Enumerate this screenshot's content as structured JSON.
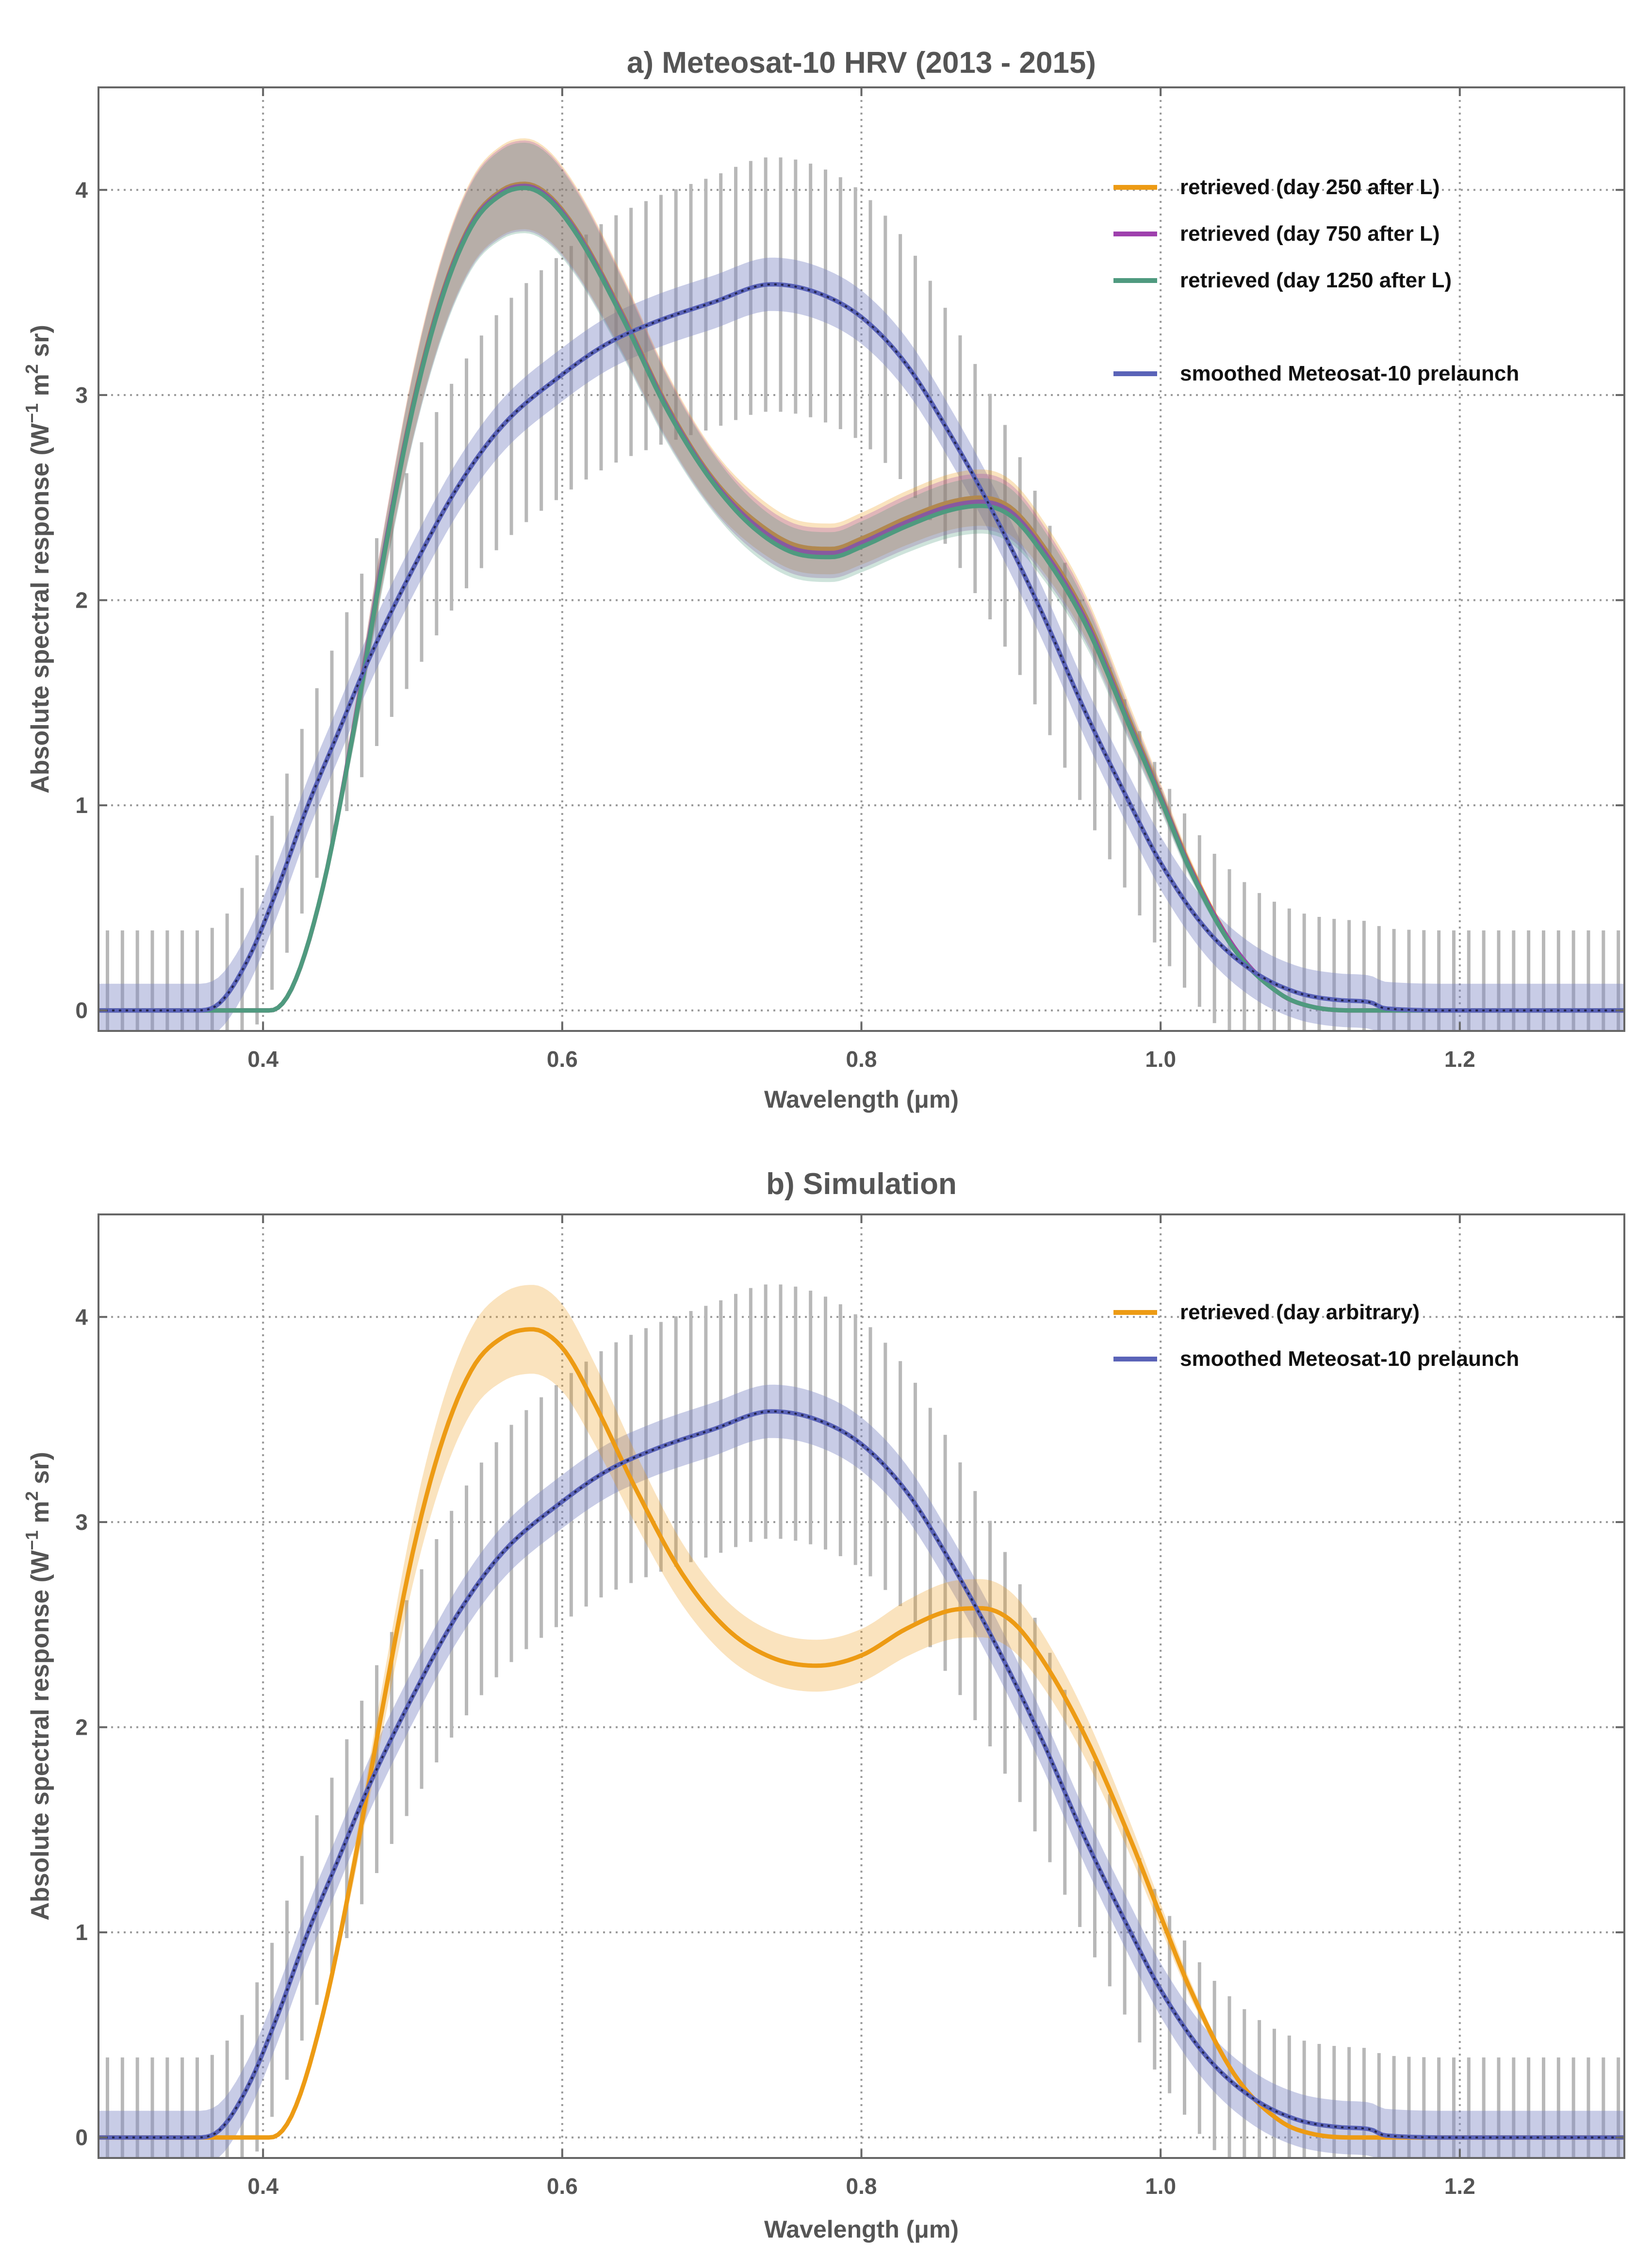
{
  "chart_data": [
    {
      "type": "line",
      "title": "a) Meteosat-10 HRV (2013 - 2015)",
      "xlabel": "Wavelength (μm)",
      "ylabel_main": "Absolute spectral response (W",
      "ylabel_exp1": "−1",
      "ylabel_mid": " m",
      "ylabel_exp2": "2",
      "ylabel_end": " sr)",
      "xlim": [
        0.29,
        1.31
      ],
      "ylim": [
        -0.1,
        4.5
      ],
      "xticks": [
        0.4,
        0.6,
        0.8,
        1.0,
        1.2
      ],
      "xtick_labels": [
        "0.4",
        "0.6",
        "0.8",
        "1.0",
        "1.2"
      ],
      "yticks": [
        0,
        1,
        2,
        3,
        4
      ],
      "ytick_labels": [
        "0",
        "1",
        "2",
        "3",
        "4"
      ],
      "grid": true,
      "legend_position": "top-right",
      "reference": {
        "name": "smoothed Meteosat-10 prelaunch",
        "color": "#5a63b8",
        "band_color": "#7c86c4",
        "band_halfwidth": 0.13,
        "errorbar_halfwidth": 0.39,
        "x": [
          0.29,
          0.33,
          0.355,
          0.37,
          0.39,
          0.41,
          0.43,
          0.45,
          0.47,
          0.5,
          0.53,
          0.56,
          0.6,
          0.63,
          0.66,
          0.7,
          0.74,
          0.77,
          0.8,
          0.83,
          0.86,
          0.89,
          0.92,
          0.95,
          0.98,
          1.0,
          1.03,
          1.06,
          1.09,
          1.12,
          1.14,
          1.15,
          1.2,
          1.31
        ],
        "y": [
          0.0,
          0.0,
          0.0,
          0.03,
          0.25,
          0.6,
          1.0,
          1.35,
          1.7,
          2.15,
          2.55,
          2.85,
          3.1,
          3.25,
          3.35,
          3.45,
          3.54,
          3.5,
          3.38,
          3.15,
          2.8,
          2.4,
          1.95,
          1.45,
          1.0,
          0.72,
          0.4,
          0.2,
          0.09,
          0.05,
          0.04,
          0.01,
          0.0,
          0.0
        ]
      },
      "series": [
        {
          "name": "retrieved (day 250 after L)",
          "color": "#ed9b14",
          "x": [
            0.29,
            0.35,
            0.405,
            0.42,
            0.44,
            0.46,
            0.48,
            0.5,
            0.52,
            0.54,
            0.56,
            0.575,
            0.59,
            0.61,
            0.64,
            0.67,
            0.7,
            0.73,
            0.76,
            0.78,
            0.8,
            0.83,
            0.86,
            0.88,
            0.9,
            0.92,
            0.95,
            0.98,
            1.0,
            1.02,
            1.05,
            1.08,
            1.1,
            1.13,
            1.31
          ],
          "y": [
            0.0,
            0.0,
            0.0,
            0.12,
            0.6,
            1.35,
            2.2,
            2.95,
            3.5,
            3.85,
            4.0,
            4.03,
            3.98,
            3.8,
            3.4,
            2.95,
            2.6,
            2.38,
            2.26,
            2.25,
            2.3,
            2.4,
            2.48,
            2.5,
            2.45,
            2.28,
            1.92,
            1.4,
            1.05,
            0.7,
            0.3,
            0.08,
            0.02,
            0.0,
            0.0
          ]
        },
        {
          "name": "retrieved (day 750 after L)",
          "color": "#9e40ad",
          "x": [
            0.29,
            0.35,
            0.405,
            0.42,
            0.44,
            0.46,
            0.48,
            0.5,
            0.52,
            0.54,
            0.56,
            0.575,
            0.59,
            0.61,
            0.64,
            0.67,
            0.7,
            0.73,
            0.76,
            0.78,
            0.8,
            0.83,
            0.86,
            0.88,
            0.9,
            0.92,
            0.95,
            0.98,
            1.0,
            1.02,
            1.05,
            1.08,
            1.1,
            1.13,
            1.31
          ],
          "y": [
            0.0,
            0.0,
            0.0,
            0.12,
            0.6,
            1.35,
            2.2,
            2.94,
            3.49,
            3.84,
            3.99,
            4.02,
            3.97,
            3.79,
            3.39,
            2.94,
            2.59,
            2.36,
            2.24,
            2.23,
            2.28,
            2.38,
            2.46,
            2.48,
            2.43,
            2.26,
            1.9,
            1.38,
            1.04,
            0.69,
            0.3,
            0.08,
            0.02,
            0.0,
            0.0
          ]
        },
        {
          "name": "retrieved (day 1250 after L)",
          "color": "#4f9a7f",
          "x": [
            0.29,
            0.35,
            0.405,
            0.42,
            0.44,
            0.46,
            0.48,
            0.5,
            0.52,
            0.54,
            0.56,
            0.575,
            0.59,
            0.61,
            0.64,
            0.67,
            0.7,
            0.73,
            0.76,
            0.78,
            0.8,
            0.83,
            0.86,
            0.88,
            0.9,
            0.92,
            0.95,
            0.98,
            1.0,
            1.02,
            1.05,
            1.08,
            1.1,
            1.13,
            1.31
          ],
          "y": [
            0.0,
            0.0,
            0.0,
            0.12,
            0.6,
            1.34,
            2.18,
            2.93,
            3.48,
            3.83,
            3.98,
            4.01,
            3.96,
            3.78,
            3.38,
            2.93,
            2.58,
            2.34,
            2.22,
            2.21,
            2.26,
            2.36,
            2.44,
            2.46,
            2.41,
            2.24,
            1.88,
            1.37,
            1.03,
            0.68,
            0.29,
            0.08,
            0.02,
            0.0,
            0.0
          ]
        }
      ]
    },
    {
      "type": "line",
      "title": "b) Simulation",
      "xlabel": "Wavelength (μm)",
      "ylabel_main": "Absolute spectral response (W",
      "ylabel_exp1": "−1",
      "ylabel_mid": " m",
      "ylabel_exp2": "2",
      "ylabel_end": " sr)",
      "xlim": [
        0.29,
        1.31
      ],
      "ylim": [
        -0.1,
        4.5
      ],
      "xticks": [
        0.4,
        0.6,
        0.8,
        1.0,
        1.2
      ],
      "xtick_labels": [
        "0.4",
        "0.6",
        "0.8",
        "1.0",
        "1.2"
      ],
      "yticks": [
        0,
        1,
        2,
        3,
        4
      ],
      "ytick_labels": [
        "0",
        "1",
        "2",
        "3",
        "4"
      ],
      "grid": true,
      "legend_position": "top-right",
      "reference": {
        "name": "smoothed Meteosat-10 prelaunch",
        "color": "#5a63b8",
        "band_color": "#7c86c4",
        "band_halfwidth": 0.13,
        "errorbar_halfwidth": 0.39,
        "x": [
          0.29,
          0.33,
          0.355,
          0.37,
          0.39,
          0.41,
          0.43,
          0.45,
          0.47,
          0.5,
          0.53,
          0.56,
          0.6,
          0.63,
          0.66,
          0.7,
          0.74,
          0.77,
          0.8,
          0.83,
          0.86,
          0.89,
          0.92,
          0.95,
          0.98,
          1.0,
          1.03,
          1.06,
          1.09,
          1.12,
          1.14,
          1.15,
          1.2,
          1.31
        ],
        "y": [
          0.0,
          0.0,
          0.0,
          0.03,
          0.25,
          0.6,
          1.0,
          1.35,
          1.7,
          2.15,
          2.55,
          2.85,
          3.1,
          3.25,
          3.35,
          3.45,
          3.54,
          3.5,
          3.38,
          3.15,
          2.8,
          2.4,
          1.95,
          1.45,
          1.0,
          0.72,
          0.4,
          0.2,
          0.09,
          0.05,
          0.04,
          0.01,
          0.0,
          0.0
        ]
      },
      "series": [
        {
          "name": "retrieved (day arbitrary)",
          "color": "#ed9b14",
          "x": [
            0.29,
            0.35,
            0.405,
            0.42,
            0.44,
            0.46,
            0.48,
            0.5,
            0.52,
            0.54,
            0.56,
            0.58,
            0.6,
            0.62,
            0.65,
            0.68,
            0.71,
            0.74,
            0.77,
            0.8,
            0.83,
            0.86,
            0.88,
            0.9,
            0.92,
            0.95,
            0.98,
            1.0,
            1.02,
            1.05,
            1.08,
            1.1,
            1.13,
            1.31
          ],
          "y": [
            0.0,
            0.0,
            0.0,
            0.12,
            0.6,
            1.3,
            2.1,
            2.85,
            3.4,
            3.75,
            3.9,
            3.94,
            3.85,
            3.6,
            3.15,
            2.75,
            2.48,
            2.34,
            2.3,
            2.35,
            2.48,
            2.57,
            2.58,
            2.52,
            2.34,
            1.95,
            1.45,
            1.08,
            0.72,
            0.3,
            0.08,
            0.02,
            0.0,
            0.0
          ]
        }
      ]
    }
  ]
}
